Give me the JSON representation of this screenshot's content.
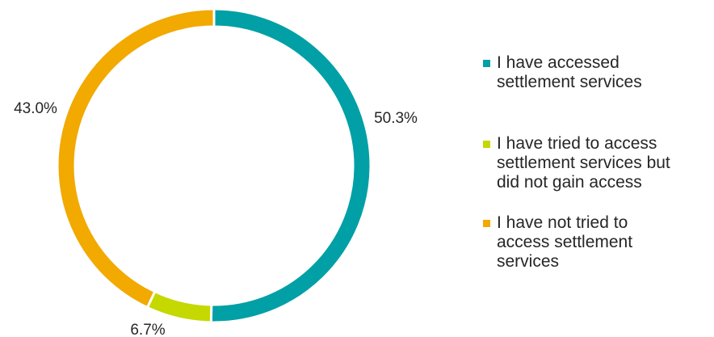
{
  "chart_data": {
    "type": "pie",
    "donut": true,
    "title": "",
    "categories": [
      "I have accessed\nsettlement services",
      "I have tried to access\nsettlement services but\ndid not gain access",
      "I have not tried to\naccess settlement\nservices"
    ],
    "values": [
      50.3,
      6.7,
      43.0
    ],
    "data_labels": [
      "50.3%",
      "6.7%",
      "43.0%"
    ],
    "colors": [
      "#00A0A6",
      "#C5D800",
      "#F2A900"
    ],
    "legend_position": "right"
  }
}
